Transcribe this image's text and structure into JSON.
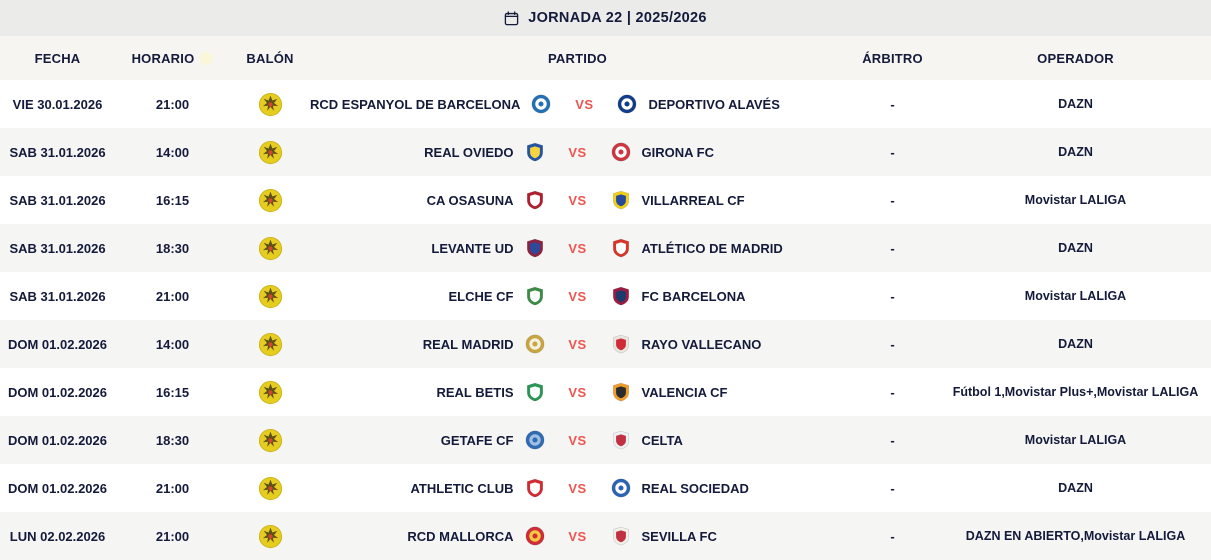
{
  "header": {
    "title": "JORNADA 22 | 2025/2026",
    "icon": "calendar-icon"
  },
  "colors": {
    "topbar_bg": "#ebebea",
    "thead_bg": "#f6f5f2",
    "row_alt_bg": "#f5f5f4",
    "text_navy": "#131a3a",
    "vs_red": "#ee544e",
    "ball_yellow": "#e5cc1e"
  },
  "icons": {
    "title_icon": "calendar-icon",
    "ball_icon": "ball-icon",
    "horario_badge": "pale-ball-icon"
  },
  "table": {
    "columns": {
      "fecha": "FECHA",
      "horario": "HORARIO",
      "balon": "BALÓN",
      "partido": "PARTIDO",
      "arbitro": "ÁRBITRO",
      "operador": "OPERADOR"
    },
    "vs_label": "VS",
    "rows": [
      {
        "fecha": "VIE 30.01.2026",
        "horario": "21:00",
        "home": "RCD ESPANYOL DE BARCELONA",
        "away": "DEPORTIVO ALAVÉS",
        "arbitro": "-",
        "operador": "DAZN",
        "home_crest": {
          "shape": "circle",
          "c1": "#2371b5",
          "c2": "#ffffff"
        },
        "away_crest": {
          "shape": "circle",
          "c1": "#133c8b",
          "c2": "#ffffff"
        }
      },
      {
        "fecha": "SAB 31.01.2026",
        "horario": "14:00",
        "home": "REAL OVIEDO",
        "away": "GIRONA FC",
        "arbitro": "-",
        "operador": "DAZN",
        "home_crest": {
          "shape": "shield",
          "c1": "#2455a4",
          "c2": "#f5d43f"
        },
        "away_crest": {
          "shape": "circle",
          "c1": "#cf3740",
          "c2": "#ffffff"
        }
      },
      {
        "fecha": "SAB 31.01.2026",
        "horario": "16:15",
        "home": "CA OSASUNA",
        "away": "VILLARREAL CF",
        "arbitro": "-",
        "operador": "Movistar LALIGA",
        "home_crest": {
          "shape": "shield",
          "c1": "#b01f2e",
          "c2": "#ffffff"
        },
        "away_crest": {
          "shape": "shield",
          "c1": "#f0d017",
          "c2": "#27499c"
        }
      },
      {
        "fecha": "SAB 31.01.2026",
        "horario": "18:30",
        "home": "LEVANTE UD",
        "away": "ATLÉTICO DE MADRID",
        "arbitro": "-",
        "operador": "DAZN",
        "home_crest": {
          "shape": "shield",
          "c1": "#8c2343",
          "c2": "#2a4b9b"
        },
        "away_crest": {
          "shape": "shield",
          "c1": "#d7352a",
          "c2": "#ffffff"
        }
      },
      {
        "fecha": "SAB 31.01.2026",
        "horario": "21:00",
        "home": "ELCHE CF",
        "away": "FC BARCELONA",
        "arbitro": "-",
        "operador": "Movistar LALIGA",
        "home_crest": {
          "shape": "shield",
          "c1": "#3d8c46",
          "c2": "#ffffff"
        },
        "away_crest": {
          "shape": "shield",
          "c1": "#9c1c41",
          "c2": "#1c3a6b"
        }
      },
      {
        "fecha": "DOM 01.02.2026",
        "horario": "14:00",
        "home": "REAL MADRID",
        "away": "RAYO VALLECANO",
        "arbitro": "-",
        "operador": "DAZN",
        "home_crest": {
          "shape": "circle",
          "c1": "#c9a53f",
          "c2": "#f4efe2"
        },
        "away_crest": {
          "shape": "shield",
          "c1": "#e9e6df",
          "c2": "#cf2c39"
        }
      },
      {
        "fecha": "DOM 01.02.2026",
        "horario": "16:15",
        "home": "REAL BETIS",
        "away": "VALENCIA CF",
        "arbitro": "-",
        "operador": "Fútbol 1,Movistar Plus+,Movistar LALIGA",
        "home_crest": {
          "shape": "shield",
          "c1": "#2a9655",
          "c2": "#ffffff"
        },
        "away_crest": {
          "shape": "shield",
          "c1": "#f09d2b",
          "c2": "#2b2b2b"
        }
      },
      {
        "fecha": "DOM 01.02.2026",
        "horario": "18:30",
        "home": "GETAFE CF",
        "away": "CELTA",
        "arbitro": "-",
        "operador": "Movistar LALIGA",
        "home_crest": {
          "shape": "circle",
          "c1": "#2f6bb3",
          "c2": "#9fc0e2"
        },
        "away_crest": {
          "shape": "shield",
          "c1": "#eef0f4",
          "c2": "#c03040"
        }
      },
      {
        "fecha": "DOM 01.02.2026",
        "horario": "21:00",
        "home": "ATHLETIC CLUB",
        "away": "REAL SOCIEDAD",
        "arbitro": "-",
        "operador": "DAZN",
        "home_crest": {
          "shape": "shield",
          "c1": "#d02a33",
          "c2": "#ffffff"
        },
        "away_crest": {
          "shape": "circle",
          "c1": "#2b63b5",
          "c2": "#ffffff"
        }
      },
      {
        "fecha": "LUN 02.02.2026",
        "horario": "21:00",
        "home": "RCD MALLORCA",
        "away": "SEVILLA FC",
        "arbitro": "-",
        "operador": "DAZN EN ABIERTO,Movistar LALIGA",
        "home_crest": {
          "shape": "circle",
          "c1": "#cf2c39",
          "c2": "#f3c93f"
        },
        "away_crest": {
          "shape": "shield",
          "c1": "#f2efe6",
          "c2": "#c03040"
        }
      }
    ]
  }
}
